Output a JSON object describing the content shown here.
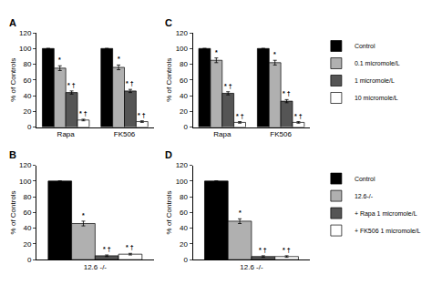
{
  "chart_data": [
    {
      "type": "bar",
      "title": "A",
      "ylabel": "% of Controls",
      "categories": [
        "Rapa",
        "FK506"
      ],
      "series": [
        {
          "name": "Control",
          "color": "#000000",
          "values": [
            100,
            100
          ],
          "errors": [
            0,
            0
          ]
        },
        {
          "name": "0.1 micromole/L",
          "color": "#b0b0b0",
          "values": [
            75,
            76
          ],
          "errors": [
            3,
            3
          ]
        },
        {
          "name": "1 micromole/L",
          "color": "#555555",
          "values": [
            44,
            46
          ],
          "errors": [
            2,
            2
          ]
        },
        {
          "name": "10 micromole/L",
          "color": "#ffffff",
          "values": [
            9,
            7
          ],
          "errors": [
            1,
            1
          ]
        }
      ],
      "ylim": [
        0,
        120
      ],
      "yticks": [
        0,
        20,
        40,
        60,
        80,
        100,
        120
      ],
      "grid": false,
      "annotations": [
        {
          "category": "Rapa",
          "series": "0.1 micromole/L",
          "text": "*"
        },
        {
          "category": "Rapa",
          "series": "1 micromole/L",
          "text": "* †"
        },
        {
          "category": "Rapa",
          "series": "10 micromole/L",
          "text": "* †"
        },
        {
          "category": "FK506",
          "series": "0.1 micromole/L",
          "text": "*"
        },
        {
          "category": "FK506",
          "series": "1 micromole/L",
          "text": "* †"
        },
        {
          "category": "FK506",
          "series": "10 micromole/L",
          "text": "* †"
        }
      ]
    },
    {
      "type": "bar",
      "title": "C",
      "ylabel": "% of Controls",
      "categories": [
        "Rapa",
        "FK506"
      ],
      "series": [
        {
          "name": "Control",
          "color": "#000000",
          "values": [
            100,
            100
          ],
          "errors": [
            0,
            0
          ]
        },
        {
          "name": "0.1 micromole/L",
          "color": "#b0b0b0",
          "values": [
            85,
            82
          ],
          "errors": [
            3,
            3
          ]
        },
        {
          "name": "1 micromole/L",
          "color": "#555555",
          "values": [
            43,
            33
          ],
          "errors": [
            2,
            2
          ]
        },
        {
          "name": "10 micromole/L",
          "color": "#ffffff",
          "values": [
            6,
            6
          ],
          "errors": [
            1,
            1
          ]
        }
      ],
      "ylim": [
        0,
        120
      ],
      "yticks": [
        0,
        20,
        40,
        60,
        80,
        100,
        120
      ],
      "grid": false,
      "annotations": [
        {
          "category": "Rapa",
          "series": "0.1 micromole/L",
          "text": "*"
        },
        {
          "category": "Rapa",
          "series": "1 micromole/L",
          "text": "* †"
        },
        {
          "category": "Rapa",
          "series": "10 micromole/L",
          "text": "* †"
        },
        {
          "category": "FK506",
          "series": "0.1 micromole/L",
          "text": "*"
        },
        {
          "category": "FK506",
          "series": "1 micromole/L",
          "text": "* †"
        },
        {
          "category": "FK506",
          "series": "10 micromole/L",
          "text": "* †"
        }
      ]
    },
    {
      "type": "bar",
      "title": "B",
      "ylabel": "% of Controls",
      "categories": [
        "12.6 -/-"
      ],
      "series": [
        {
          "name": "Control",
          "color": "#000000",
          "values": [
            100
          ],
          "errors": [
            0
          ]
        },
        {
          "name": "12.6-/-",
          "color": "#b0b0b0",
          "values": [
            46
          ],
          "errors": [
            3
          ]
        },
        {
          "name": "+ Rapa 1 micromole/L",
          "color": "#555555",
          "values": [
            5
          ],
          "errors": [
            1
          ]
        },
        {
          "name": "+ FK506 1 micromole/L",
          "color": "#ffffff",
          "values": [
            7
          ],
          "errors": [
            1
          ]
        }
      ],
      "ylim": [
        0,
        120
      ],
      "yticks": [
        0,
        20,
        40,
        60,
        80,
        100,
        120
      ],
      "grid": false,
      "annotations": [
        {
          "category": "12.6 -/-",
          "series": "12.6-/-",
          "text": "*"
        },
        {
          "category": "12.6 -/-",
          "series": "+ Rapa 1 micromole/L",
          "text": "* †"
        },
        {
          "category": "12.6 -/-",
          "series": "+ FK506 1 micromole/L",
          "text": "* †"
        }
      ]
    },
    {
      "type": "bar",
      "title": "D",
      "ylabel": "% of Controls",
      "categories": [
        "12.6 -/-"
      ],
      "series": [
        {
          "name": "Control",
          "color": "#000000",
          "values": [
            100
          ],
          "errors": [
            0
          ]
        },
        {
          "name": "12.6-/-",
          "color": "#b0b0b0",
          "values": [
            49
          ],
          "errors": [
            3
          ]
        },
        {
          "name": "+ Rapa 1 micromole/L",
          "color": "#555555",
          "values": [
            4
          ],
          "errors": [
            1
          ]
        },
        {
          "name": "+ FK506 1 micromole/L",
          "color": "#ffffff",
          "values": [
            4
          ],
          "errors": [
            1
          ]
        }
      ],
      "ylim": [
        0,
        120
      ],
      "yticks": [
        0,
        20,
        40,
        60,
        80,
        100,
        120
      ],
      "grid": false,
      "annotations": [
        {
          "category": "12.6 -/-",
          "series": "12.6-/-",
          "text": "*"
        },
        {
          "category": "12.6 -/-",
          "series": "+ Rapa 1 micromole/L",
          "text": "* †"
        },
        {
          "category": "12.6 -/-",
          "series": "+ FK506 1 micromole/L",
          "text": "* †"
        }
      ]
    }
  ]
}
